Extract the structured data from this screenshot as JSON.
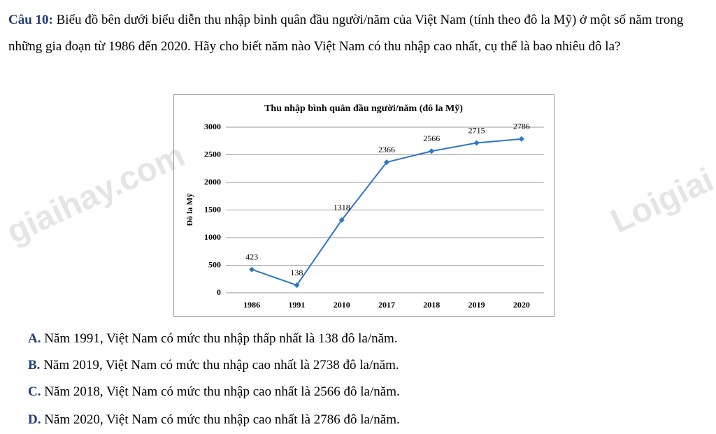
{
  "question": {
    "label": "Câu 10:",
    "text": "Biểu đồ bên dưới biểu diễn thu nhập bình quân đầu người/năm của Việt Nam (tính theo đô la Mỹ) ở một số năm trong những gia đoạn từ 1986 đến 2020. Hãy cho biết năm nào Việt Nam có thu nhập cao nhất, cụ thể là bao nhiêu đô la?"
  },
  "chart_data": {
    "type": "line",
    "title": "Thu nhập bình quân đầu người/năm (đô la Mỹ)",
    "y_label": "Đô la Mỹ",
    "categories": [
      "1986",
      "1991",
      "2010",
      "2017",
      "2018",
      "2019",
      "2020"
    ],
    "series": [
      {
        "color": "#2e75c8",
        "values": [
          423,
          138,
          1318,
          2366,
          2566,
          2715,
          2786
        ]
      }
    ],
    "ylim": [
      0,
      3000
    ],
    "yticks": [
      0,
      500,
      1000,
      1500,
      2000,
      2500,
      3000
    ],
    "grid": true
  },
  "options": [
    {
      "label": "A.",
      "text": "Năm 1991, Việt Nam có mức thu nhập thấp nhất là 138 đô la/năm."
    },
    {
      "label": "B.",
      "text": "Năm 2019, Việt Nam có mức thu nhập cao nhất là 2738 đô la/năm."
    },
    {
      "label": "C.",
      "text": "Năm 2018, Việt Nam có mức thu nhập cao nhất là 2566 đô la/năm."
    },
    {
      "label": "D.",
      "text": "Năm 2020, Việt Nam có mức thu nhập cao nhất là 2786 đô la/năm."
    }
  ],
  "watermarks": [
    "giaihay.com",
    "Loigiai"
  ]
}
